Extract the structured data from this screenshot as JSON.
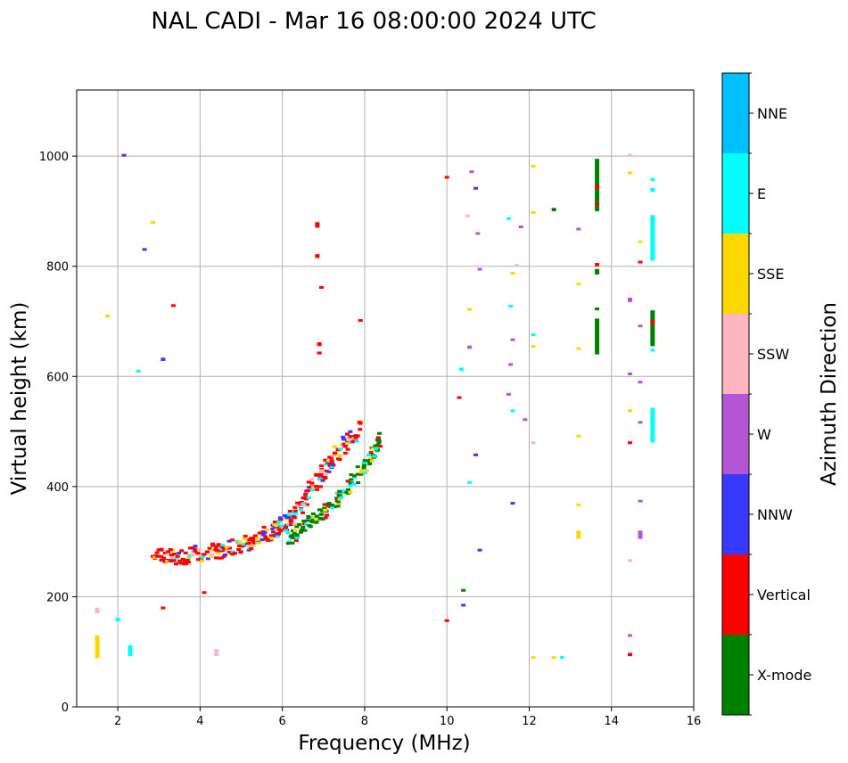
{
  "chart_data": {
    "type": "scatter",
    "title": "NAL CADI - Mar 16 08:00:00 2024 UTC",
    "xlabel": "Frequency (MHz)",
    "ylabel": "Virtual height (km)",
    "xlim": [
      1,
      16
    ],
    "ylim": [
      0,
      1120
    ],
    "xticks": [
      2,
      4,
      6,
      8,
      10,
      12,
      14,
      16
    ],
    "yticks": [
      0,
      200,
      400,
      600,
      800,
      1000
    ],
    "grid": true,
    "colorbar": {
      "label": "Azimuth Direction",
      "categories": [
        {
          "name": "X-mode",
          "color": "#008000"
        },
        {
          "name": "Vertical",
          "color": "#ff0000"
        },
        {
          "name": "NNW",
          "color": "#3a3aff"
        },
        {
          "name": "W",
          "color": "#b455d6"
        },
        {
          "name": "SSW",
          "color": "#ffb6c1"
        },
        {
          "name": "SSE",
          "color": "#ffd700"
        },
        {
          "name": "E",
          "color": "#00ffff"
        },
        {
          "name": "NNE",
          "color": "#00bfff"
        }
      ]
    },
    "trace": [
      {
        "f": 2.9,
        "h": 263
      },
      {
        "f": 3.3,
        "h": 263
      },
      {
        "f": 3.8,
        "h": 268
      },
      {
        "f": 4.2,
        "h": 272
      },
      {
        "f": 4.6,
        "h": 276
      },
      {
        "f": 5.0,
        "h": 285
      },
      {
        "f": 5.4,
        "h": 296
      },
      {
        "f": 5.8,
        "h": 310
      },
      {
        "f": 6.1,
        "h": 326
      },
      {
        "f": 6.4,
        "h": 350
      },
      {
        "f": 6.7,
        "h": 385
      },
      {
        "f": 7.0,
        "h": 420
      },
      {
        "f": 7.3,
        "h": 450
      },
      {
        "f": 7.6,
        "h": 475
      },
      {
        "f": 7.9,
        "h": 500
      }
    ],
    "xmode_trace": [
      {
        "f": 6.2,
        "h": 300
      },
      {
        "f": 6.6,
        "h": 325
      },
      {
        "f": 7.0,
        "h": 345
      },
      {
        "f": 7.4,
        "h": 375
      },
      {
        "f": 7.8,
        "h": 410
      },
      {
        "f": 8.2,
        "h": 450
      },
      {
        "f": 8.4,
        "h": 480
      }
    ],
    "points": [
      {
        "f": 13.65,
        "h0": 640,
        "h1": 705,
        "c": 0
      },
      {
        "f": 13.65,
        "h0": 900,
        "h1": 995,
        "c": 0
      },
      {
        "f": 13.65,
        "h0": 785,
        "h1": 795,
        "c": 0
      },
      {
        "f": 13.65,
        "h0": 720,
        "h1": 725,
        "c": 0
      },
      {
        "f": 13.65,
        "h0": 940,
        "h1": 948,
        "c": 1
      },
      {
        "f": 13.65,
        "h0": 910,
        "h1": 915,
        "c": 1
      },
      {
        "f": 13.65,
        "h0": 800,
        "h1": 806,
        "c": 1
      },
      {
        "f": 15.0,
        "h0": 655,
        "h1": 720,
        "c": 0
      },
      {
        "f": 15.0,
        "h0": 695,
        "h1": 702,
        "c": 1
      },
      {
        "f": 15.0,
        "h0": 810,
        "h1": 893,
        "c": 6
      },
      {
        "f": 15.0,
        "h0": 480,
        "h1": 543,
        "c": 6
      },
      {
        "f": 15.0,
        "h0": 935,
        "h1": 942,
        "c": 6
      },
      {
        "f": 15.0,
        "h0": 955,
        "h1": 960,
        "c": 6
      },
      {
        "f": 15.0,
        "h0": 645,
        "h1": 650,
        "c": 6
      },
      {
        "f": 6.85,
        "h0": 870,
        "h1": 880,
        "c": 1
      },
      {
        "f": 6.85,
        "h0": 815,
        "h1": 822,
        "c": 1
      },
      {
        "f": 6.9,
        "h0": 655,
        "h1": 662,
        "c": 1
      },
      {
        "f": 6.9,
        "h0": 640,
        "h1": 645,
        "c": 1
      },
      {
        "f": 6.95,
        "h0": 760,
        "h1": 764,
        "c": 1
      },
      {
        "f": 7.9,
        "h0": 700,
        "h1": 704,
        "c": 1
      },
      {
        "f": 3.35,
        "h0": 727,
        "h1": 731,
        "c": 1
      },
      {
        "f": 2.15,
        "h0": 1001,
        "h1": 1004,
        "c": 2
      },
      {
        "f": 2.85,
        "h0": 878,
        "h1": 882,
        "c": 5
      },
      {
        "f": 2.65,
        "h0": 830,
        "h1": 833,
        "c": 2
      },
      {
        "f": 1.75,
        "h0": 708,
        "h1": 712,
        "c": 5
      },
      {
        "f": 3.1,
        "h0": 628,
        "h1": 634,
        "c": 2
      },
      {
        "f": 2.5,
        "h0": 609,
        "h1": 612,
        "c": 6
      },
      {
        "f": 1.5,
        "h0": 88,
        "h1": 130,
        "c": 5
      },
      {
        "f": 1.5,
        "h0": 170,
        "h1": 180,
        "c": 4
      },
      {
        "f": 2.0,
        "h0": 155,
        "h1": 162,
        "c": 6
      },
      {
        "f": 2.3,
        "h0": 92,
        "h1": 112,
        "c": 6
      },
      {
        "f": 3.1,
        "h0": 178,
        "h1": 182,
        "c": 1
      },
      {
        "f": 4.1,
        "h0": 206,
        "h1": 210,
        "c": 1
      },
      {
        "f": 4.4,
        "h0": 92,
        "h1": 105,
        "c": 4
      },
      {
        "f": 10.0,
        "h0": 960,
        "h1": 964,
        "c": 1
      },
      {
        "f": 10.0,
        "h0": 155,
        "h1": 159,
        "c": 1
      },
      {
        "f": 10.5,
        "h0": 890,
        "h1": 894,
        "c": 4
      },
      {
        "f": 10.6,
        "h0": 970,
        "h1": 974,
        "c": 3
      },
      {
        "f": 10.7,
        "h0": 940,
        "h1": 944,
        "c": 2
      },
      {
        "f": 10.75,
        "h0": 858,
        "h1": 862,
        "c": 3
      },
      {
        "f": 10.8,
        "h0": 793,
        "h1": 797,
        "c": 3
      },
      {
        "f": 10.55,
        "h0": 720,
        "h1": 724,
        "c": 5
      },
      {
        "f": 10.55,
        "h0": 650,
        "h1": 656,
        "c": 3
      },
      {
        "f": 10.35,
        "h0": 610,
        "h1": 616,
        "c": 6
      },
      {
        "f": 10.3,
        "h0": 560,
        "h1": 564,
        "c": 1
      },
      {
        "f": 10.7,
        "h0": 455,
        "h1": 460,
        "c": 2
      },
      {
        "f": 10.55,
        "h0": 405,
        "h1": 410,
        "c": 6
      },
      {
        "f": 10.8,
        "h0": 283,
        "h1": 287,
        "c": 2
      },
      {
        "f": 10.4,
        "h0": 183,
        "h1": 187,
        "c": 2
      },
      {
        "f": 10.4,
        "h0": 210,
        "h1": 214,
        "c": 0
      },
      {
        "f": 11.5,
        "h0": 885,
        "h1": 889,
        "c": 6
      },
      {
        "f": 11.8,
        "h0": 870,
        "h1": 874,
        "c": 3
      },
      {
        "f": 11.6,
        "h0": 786,
        "h1": 790,
        "c": 5
      },
      {
        "f": 11.7,
        "h0": 800,
        "h1": 804,
        "c": 4
      },
      {
        "f": 11.55,
        "h0": 726,
        "h1": 730,
        "c": 6
      },
      {
        "f": 11.6,
        "h0": 665,
        "h1": 669,
        "c": 3
      },
      {
        "f": 11.55,
        "h0": 620,
        "h1": 624,
        "c": 3
      },
      {
        "f": 11.5,
        "h0": 565,
        "h1": 570,
        "c": 3
      },
      {
        "f": 11.6,
        "h0": 535,
        "h1": 540,
        "c": 6
      },
      {
        "f": 11.9,
        "h0": 520,
        "h1": 524,
        "c": 3
      },
      {
        "f": 11.6,
        "h0": 368,
        "h1": 372,
        "c": 2
      },
      {
        "f": 12.1,
        "h0": 980,
        "h1": 984,
        "c": 5
      },
      {
        "f": 12.1,
        "h0": 896,
        "h1": 900,
        "c": 5
      },
      {
        "f": 12.1,
        "h0": 674,
        "h1": 678,
        "c": 6
      },
      {
        "f": 12.1,
        "h0": 653,
        "h1": 657,
        "c": 5
      },
      {
        "f": 12.1,
        "h0": 478,
        "h1": 482,
        "c": 4
      },
      {
        "f": 12.6,
        "h0": 900,
        "h1": 906,
        "c": 0
      },
      {
        "f": 13.2,
        "h0": 866,
        "h1": 870,
        "c": 3
      },
      {
        "f": 13.2,
        "h0": 766,
        "h1": 770,
        "c": 5
      },
      {
        "f": 13.2,
        "h0": 649,
        "h1": 653,
        "c": 5
      },
      {
        "f": 13.2,
        "h0": 490,
        "h1": 494,
        "c": 5
      },
      {
        "f": 13.2,
        "h0": 365,
        "h1": 369,
        "c": 5
      },
      {
        "f": 13.2,
        "h0": 305,
        "h1": 320,
        "c": 5
      },
      {
        "f": 12.8,
        "h0": 88,
        "h1": 92,
        "c": 6
      },
      {
        "f": 12.6,
        "h0": 88,
        "h1": 92,
        "c": 5
      },
      {
        "f": 12.1,
        "h0": 88,
        "h1": 92,
        "c": 5
      },
      {
        "f": 14.45,
        "h0": 1000,
        "h1": 1004,
        "c": 4
      },
      {
        "f": 14.45,
        "h0": 968,
        "h1": 972,
        "c": 5
      },
      {
        "f": 14.45,
        "h0": 735,
        "h1": 743,
        "c": 3
      },
      {
        "f": 14.45,
        "h0": 603,
        "h1": 607,
        "c": 3
      },
      {
        "f": 14.45,
        "h0": 536,
        "h1": 540,
        "c": 5
      },
      {
        "f": 14.45,
        "h0": 478,
        "h1": 482,
        "c": 1
      },
      {
        "f": 14.45,
        "h0": 264,
        "h1": 268,
        "c": 4
      },
      {
        "f": 14.45,
        "h0": 128,
        "h1": 132,
        "c": 3
      },
      {
        "f": 14.45,
        "h0": 92,
        "h1": 98,
        "c": 1
      },
      {
        "f": 14.7,
        "h0": 806,
        "h1": 810,
        "c": 1
      },
      {
        "f": 14.7,
        "h0": 843,
        "h1": 847,
        "c": 5
      },
      {
        "f": 14.7,
        "h0": 690,
        "h1": 694,
        "c": 3
      },
      {
        "f": 14.7,
        "h0": 588,
        "h1": 592,
        "c": 3
      },
      {
        "f": 14.7,
        "h0": 515,
        "h1": 519,
        "c": 3
      },
      {
        "f": 14.7,
        "h0": 372,
        "h1": 376,
        "c": 3
      },
      {
        "f": 14.7,
        "h0": 305,
        "h1": 320,
        "c": 3
      }
    ]
  }
}
